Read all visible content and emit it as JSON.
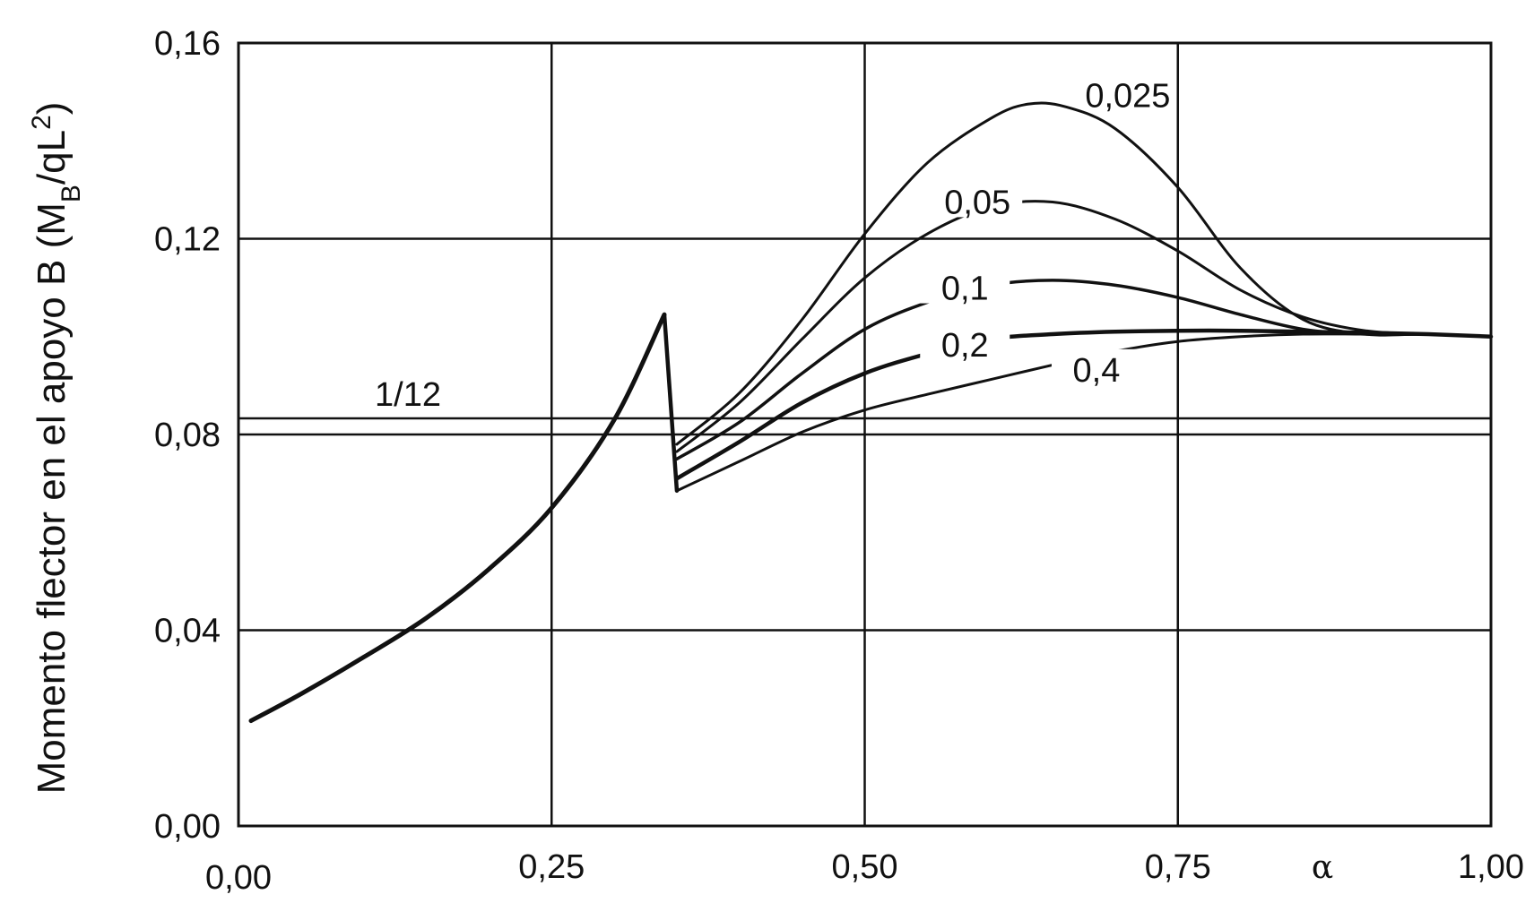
{
  "chart_data": {
    "type": "line",
    "title": "",
    "ylabel": {
      "prefix": "Momento flector en el apoyo B (M",
      "sub": "B",
      "mid": "/qL",
      "sup": "2",
      "suffix": ")"
    },
    "xlabel": "α",
    "xlim": [
      0,
      1
    ],
    "ylim": [
      0,
      0.16
    ],
    "xticks": [
      {
        "v": 0.0,
        "label": "0,00"
      },
      {
        "v": 0.25,
        "label": "0,25"
      },
      {
        "v": 0.5,
        "label": "0,50"
      },
      {
        "v": 0.75,
        "label": "0,75"
      },
      {
        "v": 1.0,
        "label": "1,00"
      }
    ],
    "yticks": [
      {
        "v": 0.0,
        "label": "0,00"
      },
      {
        "v": 0.04,
        "label": "0,04"
      },
      {
        "v": 0.08,
        "label": "0,08"
      },
      {
        "v": 0.12,
        "label": "0,12"
      },
      {
        "v": 0.16,
        "label": "0,16"
      }
    ],
    "grid": true,
    "reference_line": {
      "label": "1/12",
      "value": 0.0833
    },
    "base_curve": {
      "x": [
        0.01,
        0.05,
        0.1,
        0.15,
        0.2,
        0.25,
        0.3,
        0.34
      ],
      "y": [
        0.0215,
        0.027,
        0.0345,
        0.0425,
        0.0525,
        0.065,
        0.083,
        0.1045
      ]
    },
    "series": [
      {
        "name": "0,025",
        "x": [
          0.35,
          0.4,
          0.45,
          0.5,
          0.55,
          0.6,
          0.63,
          0.66,
          0.7,
          0.75,
          0.8,
          0.85,
          0.9,
          0.95,
          1.0
        ],
        "y": [
          0.078,
          0.0885,
          0.1035,
          0.121,
          0.1355,
          0.1445,
          0.1475,
          0.147,
          0.1425,
          0.1305,
          0.114,
          0.1035,
          0.1005,
          0.1005,
          0.1
        ]
      },
      {
        "name": "0,05",
        "x": [
          0.35,
          0.4,
          0.45,
          0.5,
          0.55,
          0.6,
          0.65,
          0.7,
          0.75,
          0.8,
          0.85,
          0.9,
          0.95,
          1.0
        ],
        "y": [
          0.0765,
          0.0865,
          0.0995,
          0.112,
          0.121,
          0.1265,
          0.1275,
          0.124,
          0.1175,
          0.1095,
          0.104,
          0.1012,
          0.1005,
          0.1
        ]
      },
      {
        "name": "0,1",
        "x": [
          0.35,
          0.4,
          0.45,
          0.5,
          0.55,
          0.6,
          0.65,
          0.7,
          0.75,
          0.8,
          0.85,
          0.9,
          0.95,
          1.0
        ],
        "y": [
          0.075,
          0.0825,
          0.0925,
          0.1015,
          0.107,
          0.1105,
          0.1115,
          0.1105,
          0.108,
          0.1045,
          0.1015,
          0.1005,
          0.1005,
          0.1
        ]
      },
      {
        "name": "0,2",
        "x": [
          0.35,
          0.4,
          0.45,
          0.5,
          0.55,
          0.6,
          0.65,
          0.7,
          0.75,
          0.8,
          0.85,
          0.9,
          0.95,
          1.0
        ],
        "y": [
          0.071,
          0.0785,
          0.0865,
          0.0925,
          0.0965,
          0.0995,
          0.1005,
          0.101,
          0.1012,
          0.1012,
          0.101,
          0.1008,
          0.1005,
          0.1
        ]
      },
      {
        "name": "0,4",
        "x": [
          0.35,
          0.4,
          0.45,
          0.5,
          0.55,
          0.6,
          0.65,
          0.7,
          0.75,
          0.8,
          0.85,
          0.9,
          0.95,
          1.0
        ],
        "y": [
          0.0685,
          0.0745,
          0.0805,
          0.085,
          0.0882,
          0.0912,
          0.0942,
          0.097,
          0.099,
          0.1,
          0.1005,
          0.1005,
          0.1005,
          0.1
        ]
      }
    ]
  }
}
